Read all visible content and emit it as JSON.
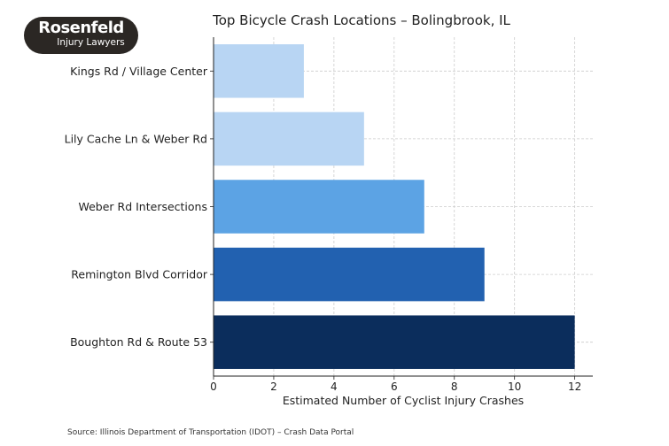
{
  "logo": {
    "line1": "Rosenfeld",
    "line2": "Injury Lawyers"
  },
  "source": "Source: Illinois Department of Transportation (IDOT) – Crash Data Portal",
  "chart_data": {
    "type": "bar",
    "orientation": "horizontal",
    "title": "Top Bicycle Crash Locations – Bolingbrook, IL",
    "xlabel": "Estimated Number of Cyclist Injury Crashes",
    "ylabel": "",
    "categories": [
      "Kings Rd / Village Center",
      "Lily Cache Ln & Weber Rd",
      "Weber Rd Intersections",
      "Remington Blvd Corridor",
      "Boughton Rd & Route 53"
    ],
    "values": [
      3,
      5,
      7,
      9,
      12
    ],
    "colors": [
      "#b8d5f3",
      "#b8d5f3",
      "#5ca3e4",
      "#2261b0",
      "#0b2d5c"
    ],
    "xlim": [
      0,
      12.6
    ],
    "xticks": [
      0,
      2,
      4,
      6,
      8,
      10,
      12
    ],
    "grid": true
  }
}
